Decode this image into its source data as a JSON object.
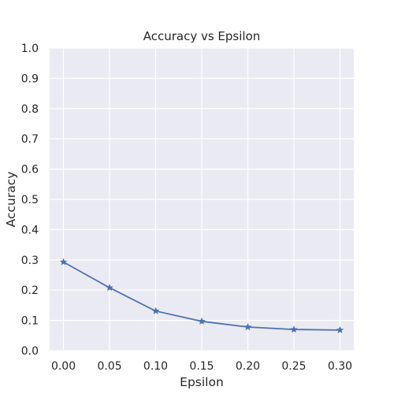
{
  "chart_data": {
    "type": "line",
    "title": "Accuracy vs Epsilon",
    "xlabel": "Epsilon",
    "ylabel": "Accuracy",
    "x": [
      0.0,
      0.05,
      0.1,
      0.15,
      0.2,
      0.25,
      0.3
    ],
    "x_tick_labels": [
      "0.00",
      "0.05",
      "0.10",
      "0.15",
      "0.20",
      "0.25",
      "0.30"
    ],
    "y_tick_labels": [
      "0.0",
      "0.1",
      "0.2",
      "0.3",
      "0.4",
      "0.5",
      "0.6",
      "0.7",
      "0.8",
      "0.9",
      "1.0"
    ],
    "y_ticks": [
      0.0,
      0.1,
      0.2,
      0.3,
      0.4,
      0.5,
      0.6,
      0.7,
      0.8,
      0.9,
      1.0
    ],
    "xlim": [
      -0.015,
      0.315
    ],
    "ylim": [
      0.0,
      1.0
    ],
    "series": [
      {
        "values": [
          0.293,
          0.208,
          0.131,
          0.097,
          0.078,
          0.07,
          0.068
        ],
        "color": "#4c72b0",
        "marker": "star"
      }
    ],
    "grid": true,
    "background_color": "#eaeaf2",
    "grid_color": "#ffffff"
  }
}
